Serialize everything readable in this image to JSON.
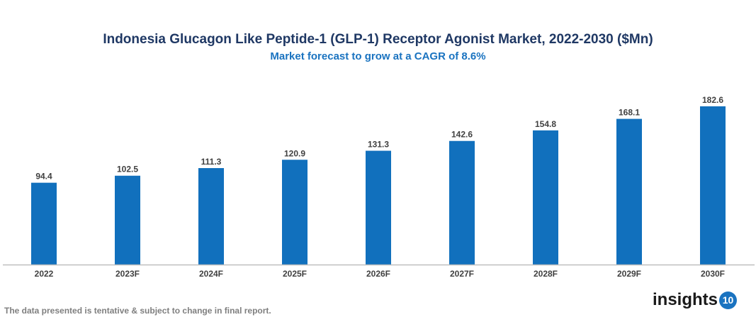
{
  "chart_data": {
    "type": "bar",
    "title": "Indonesia Glucagon Like Peptide-1 (GLP-1) Receptor Agonist Market, 2022-2030 ($Mn)",
    "subtitle": "Market forecast to grow at a CAGR of 8.6%",
    "categories": [
      "2022",
      "2023F",
      "2024F",
      "2025F",
      "2026F",
      "2027F",
      "2028F",
      "2029F",
      "2030F"
    ],
    "values": [
      94.4,
      102.5,
      111.3,
      120.9,
      131.3,
      142.6,
      154.8,
      168.1,
      182.6
    ],
    "data_labels": [
      "94.4",
      "102.5",
      "111.3",
      "120.9",
      "131.3",
      "142.6",
      "154.8",
      "168.1",
      "182.6"
    ],
    "xlabel": "",
    "ylabel": "",
    "ylim": [
      0,
      200
    ],
    "grid": false,
    "bar_color": "#1170bd"
  },
  "footer": {
    "disclaimer": "The data presented is tentative & subject to change in final report."
  },
  "logo": {
    "text": "insights",
    "badge": "10"
  }
}
